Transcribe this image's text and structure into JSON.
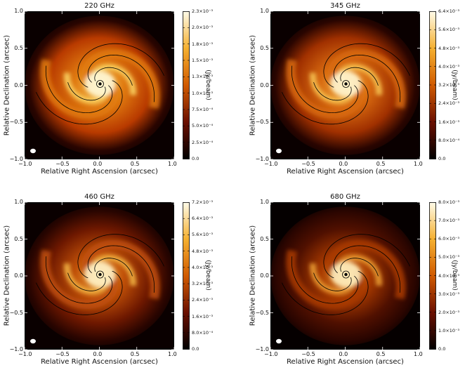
{
  "panels": [
    {
      "title": "220 GHz",
      "xlabel": "Relative Right Ascension (arcsec)",
      "ylabel": "Relative Declination (arcsec)",
      "xticks": [
        "−1.0",
        "−0.5",
        "0.0",
        "0.5",
        "1.0"
      ],
      "yticks": [
        "1.0",
        "0.5",
        "0.0",
        "−0.5",
        "−1.0"
      ],
      "colorbar_label": "(Jy/beam)",
      "colorbar_ticks": [
        "2.3×10⁻³",
        "2.0×10⁻³",
        "1.8×10⁻³",
        "1.5×10⁻³",
        "1.3×10⁻³",
        "1.0×10⁻³",
        "7.5×10⁻⁴",
        "5.0×10⁻⁴",
        "2.5×10⁻⁴",
        "0.0"
      ],
      "colors": {
        "bg": "#0a0000",
        "outer": "#b83a00",
        "mid": "#e07a10",
        "inner": "#f8d060",
        "core": "#fff8d8"
      }
    },
    {
      "title": "345 GHz",
      "xlabel": "Relative Right Ascension (arcsec)",
      "ylabel": "Relative Declination (arcsec)",
      "xticks": [
        "−1.0",
        "−0.5",
        "0.0",
        "0.5",
        "1.0"
      ],
      "yticks": [
        "1.0",
        "0.5",
        "0.0",
        "−0.5",
        "−1.0"
      ],
      "colorbar_label": "(Jy/beam)",
      "colorbar_ticks": [
        "6.4×10⁻³",
        "5.6×10⁻³",
        "4.8×10⁻³",
        "4.0×10⁻³",
        "3.2×10⁻³",
        "2.4×10⁻³",
        "1.6×10⁻³",
        "8.0×10⁻⁴",
        "0.0"
      ],
      "colors": {
        "bg": "#0a0000",
        "outer": "#a03000",
        "mid": "#d86a10",
        "inner": "#f5c050",
        "core": "#fff5d0"
      }
    },
    {
      "title": "460 GHz",
      "xlabel": "Relative Right Ascension (arcsec)",
      "ylabel": "Relative Declination (arcsec)",
      "xticks": [
        "−1.0",
        "−0.5",
        "0.0",
        "0.5",
        "1.0"
      ],
      "yticks": [
        "1.0",
        "0.5",
        "0.0",
        "−0.5",
        "−1.0"
      ],
      "colorbar_label": "(Jy/beam)",
      "colorbar_ticks": [
        "7.2×10⁻³",
        "6.4×10⁻³",
        "5.6×10⁻³",
        "4.8×10⁻³",
        "4.0×10⁻³",
        "3.2×10⁻³",
        "2.4×10⁻³",
        "1.6×10⁻³",
        "8.0×10⁻⁴",
        "0.0"
      ],
      "colors": {
        "bg": "#0a0000",
        "outer": "#6e1800",
        "mid": "#c05008",
        "inner": "#f0b040",
        "core": "#fff2c8"
      }
    },
    {
      "title": "680 GHz",
      "xlabel": "Relative Right Ascension (arcsec)",
      "ylabel": "Relative Declination (arcsec)",
      "xticks": [
        "−1.0",
        "−0.5",
        "0.0",
        "0.5",
        "1.0"
      ],
      "yticks": [
        "1.0",
        "0.5",
        "0.0",
        "−0.5",
        "−1.0"
      ],
      "colorbar_label": "(Jy/beam)",
      "colorbar_ticks": [
        "8.0×10⁻³",
        "7.0×10⁻³",
        "6.0×10⁻³",
        "5.0×10⁻³",
        "4.0×10⁻³",
        "3.0×10⁻³",
        "2.0×10⁻³",
        "1.0×10⁻³",
        "0.0"
      ],
      "colors": {
        "bg": "#050000",
        "outer": "#501000",
        "mid": "#a83a00",
        "inner": "#e89a30",
        "core": "#fff0c0"
      }
    }
  ]
}
